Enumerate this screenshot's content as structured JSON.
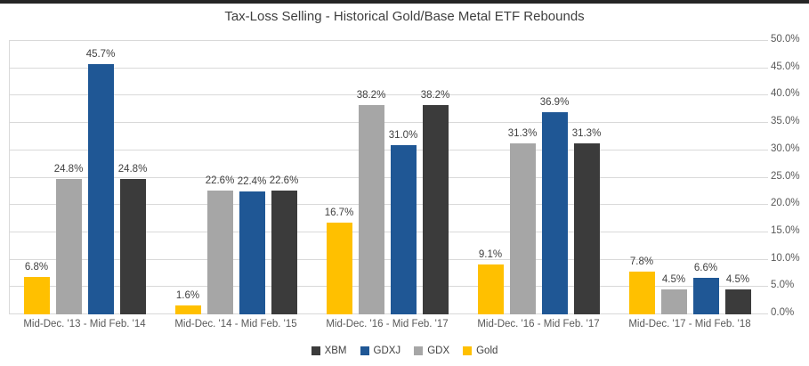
{
  "page": {
    "background": "#FFFFFF",
    "top_strip_color": "#262626"
  },
  "chart_data": {
    "type": "bar",
    "title": "Tax-Loss Selling - Historical Gold/Base Metal ETF Rebounds",
    "categories": [
      "Mid-Dec. '13 - Mid Feb. '14",
      "Mid-Dec. '14 - Mid Feb. '15",
      "Mid-Dec. '16 - Mid Feb. '17",
      "Mid-Dec. '16 - Mid Feb. '17",
      "Mid-Dec. '17 - Mid Feb. '18"
    ],
    "series": [
      {
        "name": "Gold",
        "color": "#FFC000",
        "values": [
          6.8,
          1.6,
          16.7,
          9.1,
          7.8
        ]
      },
      {
        "name": "GDX",
        "color": "#A6A6A6",
        "values": [
          24.8,
          22.6,
          38.2,
          31.3,
          4.5
        ]
      },
      {
        "name": "GDXJ",
        "color": "#1F5795",
        "values": [
          45.7,
          22.4,
          31.0,
          36.9,
          6.6
        ]
      },
      {
        "name": "XBM",
        "color": "#3B3B3B",
        "values": [
          24.8,
          22.6,
          38.2,
          31.3,
          4.5
        ]
      }
    ],
    "data_label_suffix": "%",
    "data_label_decimals": 1,
    "legend_order": [
      "XBM",
      "GDXJ",
      "GDX",
      "Gold"
    ],
    "legend_position": "bottom",
    "grid": "horizontal",
    "ylim": [
      0,
      50
    ],
    "y_tick_step": 5,
    "y_axis_side": "right",
    "y_tick_labels": [
      "0.0%",
      "5.0%",
      "10.0%",
      "15.0%",
      "20.0%",
      "25.0%",
      "30.0%",
      "35.0%",
      "40.0%",
      "45.0%",
      "50.0%"
    ],
    "gridline_color": "#D9D9D9"
  }
}
